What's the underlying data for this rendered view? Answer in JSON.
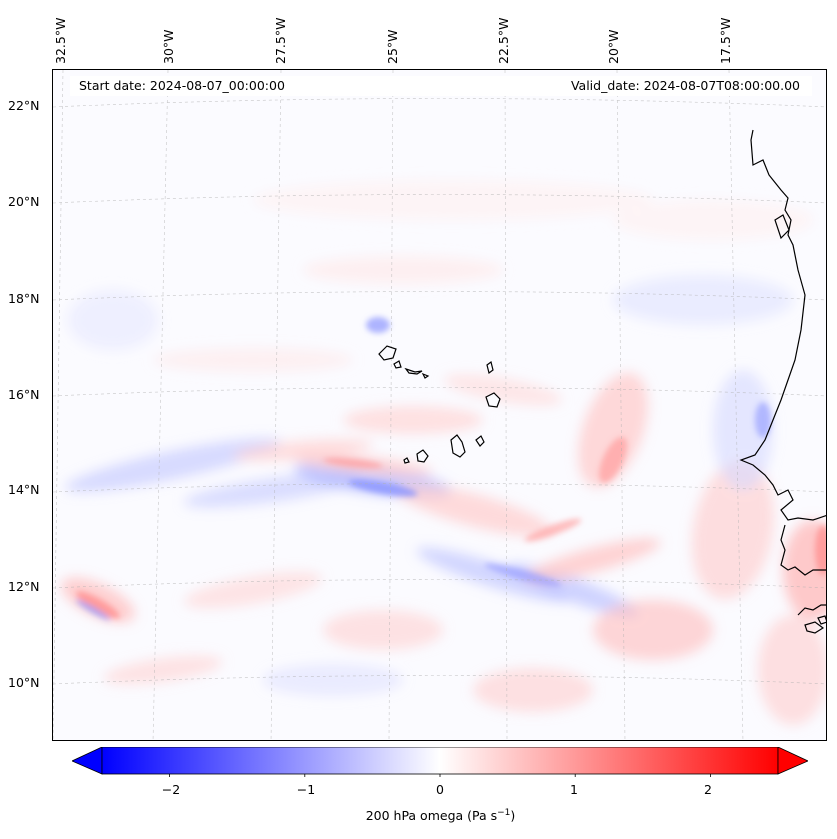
{
  "header": {
    "start_date": "Start date: 2024-08-07_00:00:00",
    "valid_date": "Valid_date: 2024-08-07T08:00:00.00"
  },
  "map": {
    "longitude_labels": [
      "32.5°W",
      "30°W",
      "27.5°W",
      "25°W",
      "22.5°W",
      "20°W",
      "17.5°W"
    ],
    "latitude_labels": [
      "22°N",
      "20°N",
      "18°N",
      "16°N",
      "14°N",
      "12°N",
      "10°N"
    ],
    "extent": {
      "lon_min": -33.0,
      "lon_max": -16.0,
      "lat_min": 8.9,
      "lat_max": 22.6
    },
    "field": "200 hPa omega",
    "colors": {
      "negative": "#0000ff",
      "positive": "#ff0000",
      "neutral": "#ffffff",
      "coastline": "#000000"
    }
  },
  "colorbar": {
    "label": "200 hPa omega (Pa s",
    "label_exponent": "−1",
    "label_close": ")",
    "ticks": [
      "−2",
      "−1",
      "0",
      "1",
      "2"
    ],
    "tick_values": [
      -2,
      -1,
      0,
      1,
      2
    ],
    "range": [
      -2.5,
      2.5
    ],
    "extend": "both",
    "colormap": "bwr"
  }
}
